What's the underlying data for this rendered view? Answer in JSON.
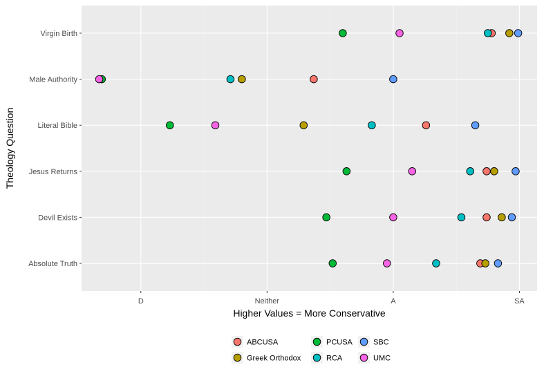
{
  "chart_data": {
    "type": "scatter",
    "title": "",
    "xlabel": "Higher Values = More Conservative",
    "ylabel": "Theology Question",
    "x_ticks": [
      {
        "label": "D",
        "value": 2
      },
      {
        "label": "Neither",
        "value": 3
      },
      {
        "label": "A",
        "value": 4
      },
      {
        "label": "SA",
        "value": 5
      }
    ],
    "xlim": [
      1.53,
      5.14
    ],
    "categories": [
      "Virgin Birth",
      "Male Authority",
      "Literal Bible",
      "Jesus Returns",
      "Devil Exists",
      "Absolute Truth"
    ],
    "grid": true,
    "legend_position": "bottom",
    "series": [
      {
        "name": "ABCUSA",
        "color": "#F8766D",
        "values": [
          4.78,
          3.37,
          4.26,
          4.74,
          4.74,
          4.69
        ]
      },
      {
        "name": "Greek Orthodox",
        "color": "#B79F00",
        "values": [
          4.92,
          2.8,
          3.29,
          4.8,
          4.86,
          4.73
        ]
      },
      {
        "name": "PCUSA",
        "color": "#00BA38",
        "values": [
          3.6,
          1.69,
          2.23,
          3.63,
          3.47,
          3.52
        ]
      },
      {
        "name": "RCA",
        "color": "#00BFC4",
        "values": [
          4.75,
          2.71,
          3.83,
          4.61,
          4.54,
          4.34
        ]
      },
      {
        "name": "SBC",
        "color": "#619CFF",
        "values": [
          4.99,
          4.0,
          4.65,
          4.97,
          4.94,
          4.83
        ]
      },
      {
        "name": "UMC",
        "color": "#F564E3",
        "values": [
          4.05,
          1.67,
          2.59,
          4.15,
          4.0,
          3.95
        ]
      }
    ]
  }
}
